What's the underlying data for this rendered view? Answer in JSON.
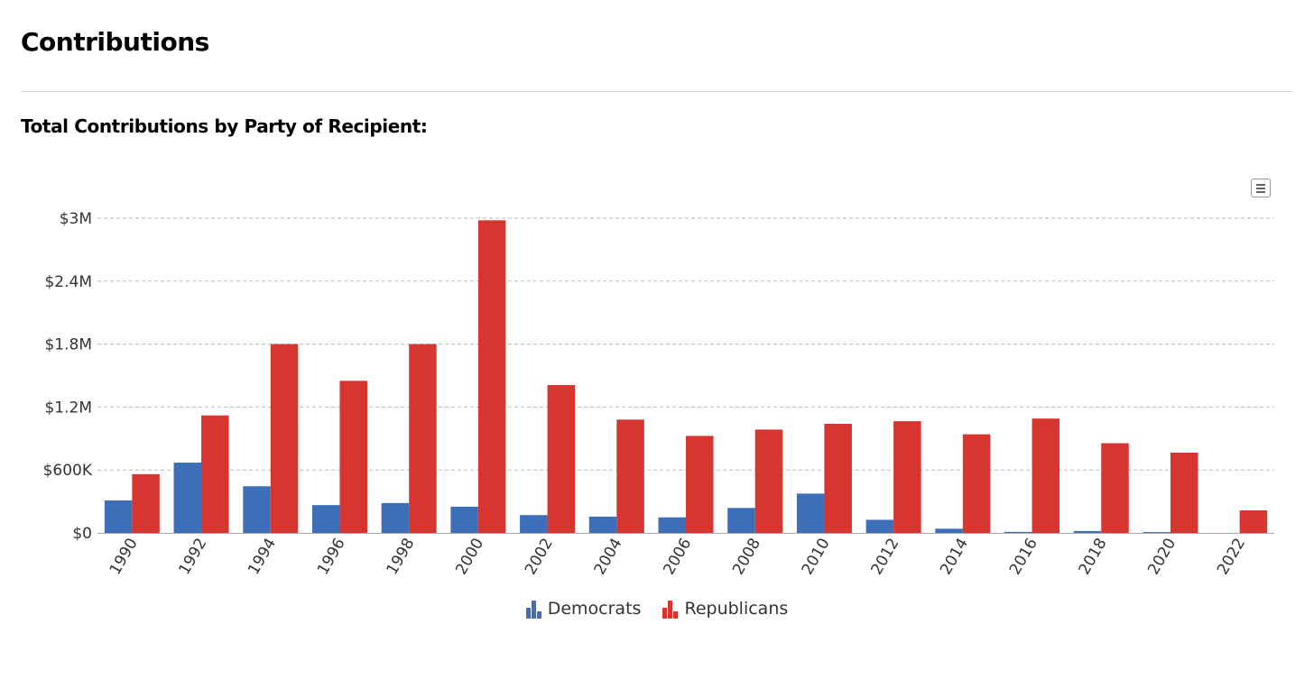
{
  "page": {
    "title": "Contributions",
    "section_title": "Total Contributions by Party of Recipient:"
  },
  "colors": {
    "democrats": "#3d6fb8",
    "republicans": "#d63530",
    "grid": "#bbbbbb",
    "axis_text": "#333333"
  },
  "icons": {
    "menu": "hamburger-menu-icon"
  },
  "chart_data": {
    "type": "bar",
    "title": "Total Contributions by Party of Recipient:",
    "xlabel": "",
    "ylabel": "",
    "categories": [
      "1990",
      "1992",
      "1994",
      "1996",
      "1998",
      "2000",
      "2002",
      "2004",
      "2006",
      "2008",
      "2010",
      "2012",
      "2014",
      "2016",
      "2018",
      "2020",
      "2022"
    ],
    "series": [
      {
        "name": "Democrats",
        "values": [
          310000,
          670000,
          445000,
          265000,
          285000,
          250000,
          170000,
          155000,
          148000,
          238000,
          375000,
          125000,
          40000,
          10000,
          18000,
          8000,
          0
        ]
      },
      {
        "name": "Republicans",
        "values": [
          560000,
          1120000,
          1800000,
          1450000,
          1800000,
          2980000,
          1410000,
          1080000,
          925000,
          985000,
          1040000,
          1065000,
          940000,
          1090000,
          855000,
          765000,
          215000
        ]
      }
    ],
    "ylim": [
      0,
      3000000
    ],
    "yticks": [
      0,
      600000,
      1200000,
      1800000,
      2400000,
      3000000
    ],
    "ytick_labels": [
      "$0",
      "$600K",
      "$1.2M",
      "$1.8M",
      "$2.4M",
      "$3M"
    ],
    "x_tick_rotation": -60,
    "grid": true,
    "legend": "bottom-center"
  }
}
